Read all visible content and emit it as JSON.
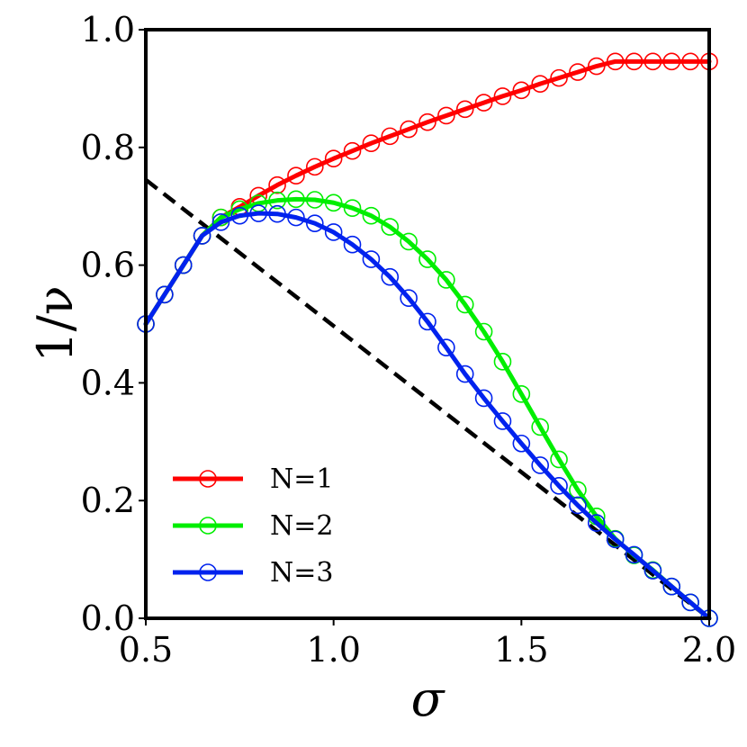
{
  "chart_data": {
    "type": "line",
    "xlabel": "σ",
    "ylabel": "1/ν",
    "xlim": [
      0.5,
      2.0
    ],
    "ylim": [
      0.0,
      1.0
    ],
    "xticks": [
      "0.5",
      "1.0",
      "1.5",
      "2.0"
    ],
    "yticks": [
      "0.0",
      "0.2",
      "0.4",
      "0.6",
      "0.8",
      "1.0"
    ],
    "grid": false,
    "legend_position": "bottom-left",
    "series": [
      {
        "name": "N=1",
        "color": "#ff0000",
        "x": [
          0.5,
          0.55,
          0.6,
          0.65,
          0.7,
          0.75,
          0.8,
          0.85,
          0.9,
          0.95,
          1.0,
          1.05,
          1.1,
          1.15,
          1.2,
          1.25,
          1.3,
          1.35,
          1.4,
          1.45,
          1.5,
          1.55,
          1.6,
          1.65,
          1.7,
          1.75,
          1.8,
          1.85,
          1.9,
          1.95,
          2.0
        ],
        "y": [
          0.5,
          0.55,
          0.6,
          0.65,
          0.681,
          0.699,
          0.718,
          0.736,
          0.752,
          0.767,
          0.781,
          0.794,
          0.807,
          0.819,
          0.831,
          0.843,
          0.854,
          0.865,
          0.876,
          0.887,
          0.897,
          0.908,
          0.918,
          0.928,
          0.938,
          0.946,
          0.946,
          0.946,
          0.946,
          0.946,
          0.946
        ]
      },
      {
        "name": "N=2",
        "color": "#00ee00",
        "x": [
          0.5,
          0.55,
          0.6,
          0.65,
          0.7,
          0.75,
          0.8,
          0.85,
          0.9,
          0.95,
          1.0,
          1.05,
          1.1,
          1.15,
          1.2,
          1.25,
          1.3,
          1.35,
          1.4,
          1.45,
          1.5,
          1.55,
          1.6,
          1.65,
          1.7,
          1.75,
          1.8,
          1.85,
          1.9,
          1.95,
          2.0
        ],
        "y": [
          0.5,
          0.55,
          0.6,
          0.65,
          0.681,
          0.695,
          0.705,
          0.71,
          0.712,
          0.711,
          0.706,
          0.697,
          0.684,
          0.665,
          0.64,
          0.61,
          0.575,
          0.533,
          0.487,
          0.436,
          0.381,
          0.325,
          0.27,
          0.218,
          0.173,
          0.135,
          0.107,
          0.082,
          0.054,
          0.027,
          0.0
        ]
      },
      {
        "name": "N=3",
        "color": "#0022ee",
        "x": [
          0.5,
          0.55,
          0.6,
          0.65,
          0.7,
          0.75,
          0.8,
          0.85,
          0.9,
          0.95,
          1.0,
          1.05,
          1.1,
          1.15,
          1.2,
          1.25,
          1.3,
          1.35,
          1.4,
          1.45,
          1.5,
          1.55,
          1.6,
          1.65,
          1.7,
          1.75,
          1.8,
          1.85,
          1.9,
          1.95,
          2.0
        ],
        "y": [
          0.5,
          0.55,
          0.6,
          0.65,
          0.673,
          0.684,
          0.688,
          0.687,
          0.681,
          0.671,
          0.656,
          0.635,
          0.61,
          0.58,
          0.544,
          0.504,
          0.46,
          0.415,
          0.374,
          0.335,
          0.297,
          0.26,
          0.225,
          0.192,
          0.162,
          0.134,
          0.108,
          0.081,
          0.054,
          0.027,
          0.0
        ]
      },
      {
        "name": "",
        "color": "#000000",
        "style": "dashed",
        "markers": false,
        "x": [
          0.5,
          2.0
        ],
        "y": [
          0.745,
          0.0
        ]
      }
    ]
  }
}
